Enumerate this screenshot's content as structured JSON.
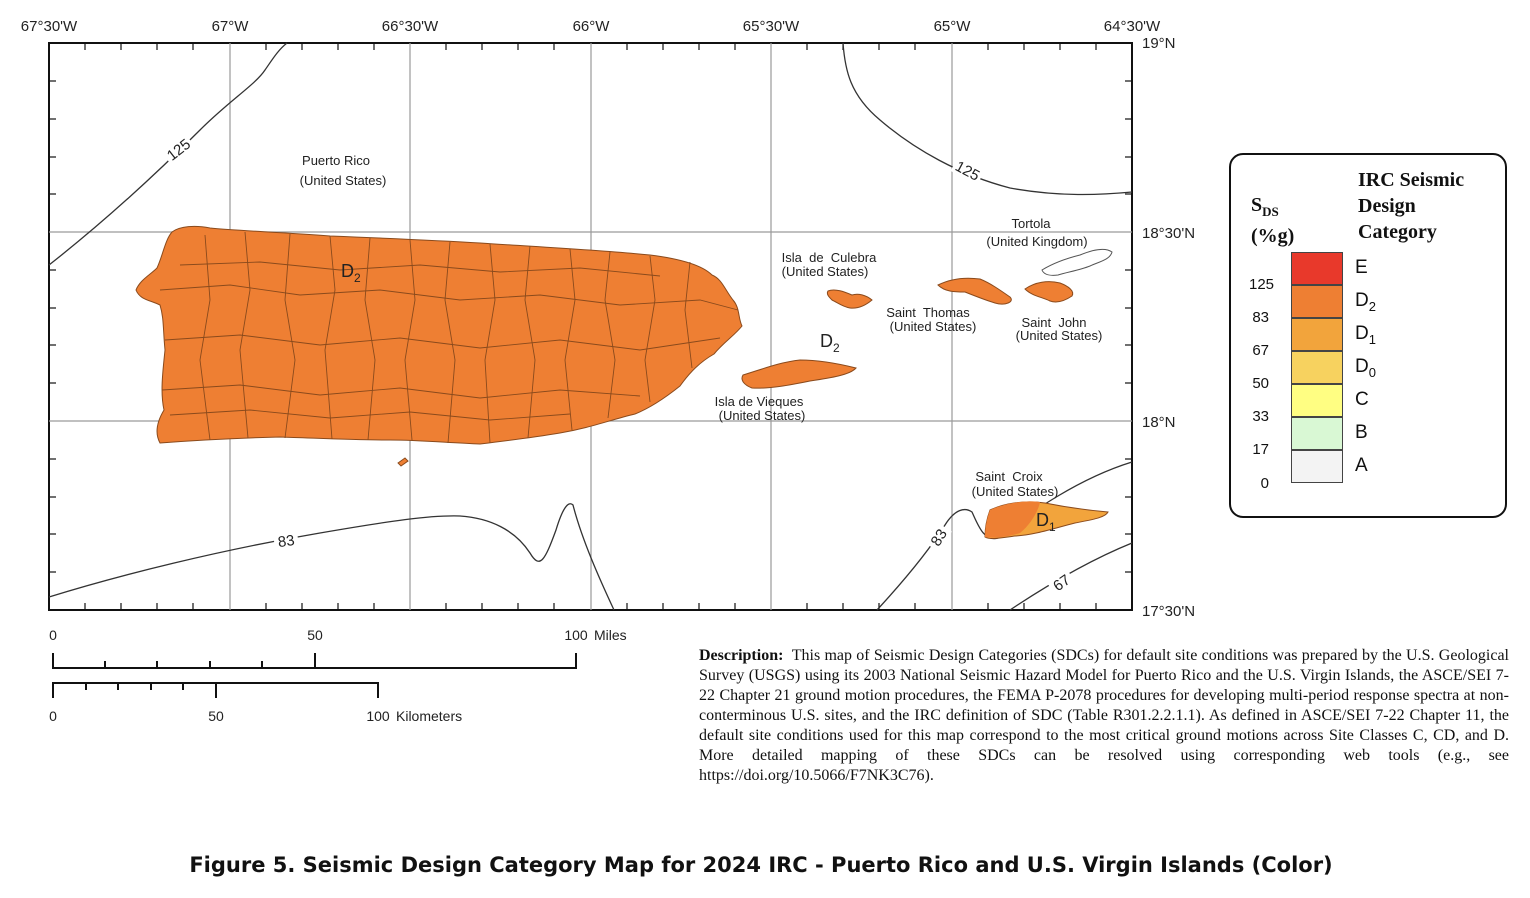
{
  "map": {
    "longitude_labels": [
      "67°30'W",
      "67°W",
      "66°30'W",
      "66°W",
      "65°30'W",
      "65°W",
      "64°30'W"
    ],
    "latitude_labels": [
      "19°N",
      "18°30'N",
      "18°N",
      "17°30'N"
    ],
    "places": {
      "puerto_rico": [
        "Puerto Rico",
        "(United States)"
      ],
      "culebra": [
        "Isla  de  Culebra",
        "(United States)"
      ],
      "vieques": [
        "Isla de Vieques",
        "(United States)"
      ],
      "saint_thomas": [
        "Saint  Thomas",
        "(United States)"
      ],
      "saint_john": [
        "Saint  John",
        "(United States)"
      ],
      "tortola": [
        "Tortola",
        "(United Kingdom)"
      ],
      "saint_croix": [
        "Saint  Croix",
        "(United States)"
      ]
    },
    "contours": [
      "125",
      "125",
      "83",
      "83",
      "67"
    ],
    "sdc_labels": {
      "puerto_rico": {
        "base": "D",
        "sub": "2"
      },
      "vieques": {
        "base": "D",
        "sub": "2"
      },
      "saint_croix": {
        "base": "D",
        "sub": "1"
      }
    },
    "colors": {
      "D2": "#ee7f33",
      "D1": "#f2a43c",
      "tortola": "#ffffff"
    }
  },
  "scale_bars": {
    "miles": {
      "labels": [
        "0",
        "50",
        "100"
      ],
      "unit": "Miles"
    },
    "kilometers": {
      "labels": [
        "0",
        "50",
        "100"
      ],
      "unit": "Kilometers"
    }
  },
  "legend": {
    "title": "IRC Seismic\nDesign\nCategory",
    "sds_label": "S",
    "sds_sub": "DS",
    "sds_unit": "(%g)",
    "categories": [
      {
        "label": "E",
        "sub": "",
        "color": "#e8392b"
      },
      {
        "label": "D",
        "sub": "2",
        "color": "#ee7f33"
      },
      {
        "label": "D",
        "sub": "1",
        "color": "#f2a43c"
      },
      {
        "label": "D",
        "sub": "0",
        "color": "#f7d25f"
      },
      {
        "label": "C",
        "sub": "",
        "color": "#fffe82"
      },
      {
        "label": "B",
        "sub": "",
        "color": "#d9f8d4"
      },
      {
        "label": "A",
        "sub": "",
        "color": "#f3f3f3"
      }
    ],
    "thresholds": [
      "125",
      "83",
      "67",
      "50",
      "33",
      "17",
      "0"
    ]
  },
  "description": {
    "heading": "Description:",
    "text": "This map of Seismic Design Categories (SDCs) for default site conditions was prepared by the U.S. Geological Survey (USGS) using its 2003 National Seismic Hazard Model for Puerto Rico and the U.S. Virgin Islands, the ASCE/SEI 7-22 Chapter 21 ground motion procedures, the FEMA P-2078 procedures for developing multi-period response spectra at non-conterminous U.S. sites, and the IRC definition of SDC (Table R301.2.2.1.1). As defined in ASCE/SEI 7-22 Chapter 11, the default site conditions used for this map correspond to the most critical ground motions across Site Classes C, CD, and D.  More detailed mapping of these SDCs can be resolved using corresponding web tools (e.g., see https://doi.org/10.5066/F7NK3C76)."
  },
  "caption": "Figure 5. Seismic Design Category Map for 2024 IRC - Puerto Rico and U.S. Virgin Islands (Color)"
}
